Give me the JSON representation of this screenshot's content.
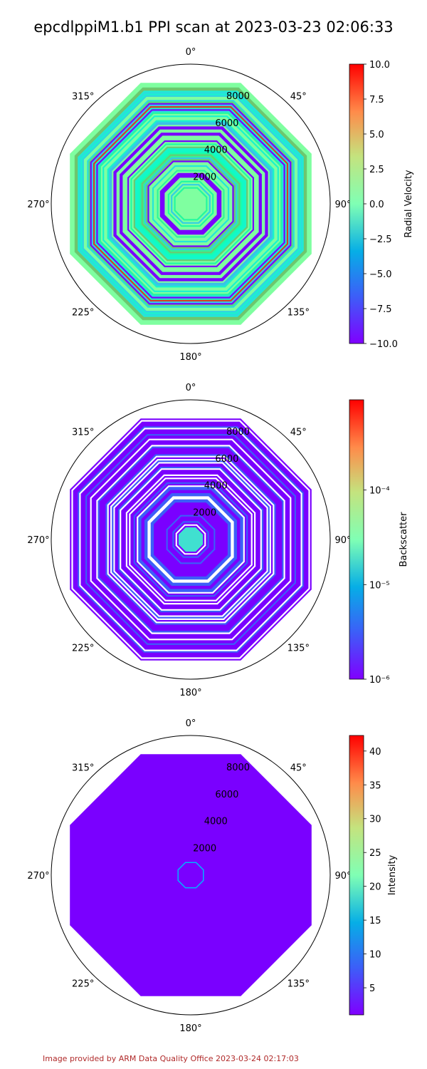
{
  "title": "epcdlppiM1.b1 PPI scan at 2023-03-23 02:06:33",
  "footer": "Image provided by ARM Data Quality Office 2023-03-24 02:17:03",
  "chart_data": [
    {
      "type": "polar",
      "angle_ticks": [
        "0°",
        "45°",
        "90°",
        "135°",
        "180°",
        "225°",
        "270°",
        "315°"
      ],
      "radial_ticks": [
        2000,
        4000,
        6000,
        8000
      ],
      "rlim": [
        0,
        9600
      ],
      "colorbar": {
        "label": "Radial Velocity",
        "scale": "linear",
        "range": [
          -10,
          10
        ],
        "ticks": [
          "10.0",
          "7.5",
          "5.0",
          "2.5",
          "0.0",
          "−2.5",
          "−5.0",
          "−7.5",
          "−10.0"
        ],
        "colormap": "rainbow"
      },
      "pattern": "varied stripes",
      "dominant_color": "#7fffa0"
    },
    {
      "type": "polar",
      "angle_ticks": [
        "0°",
        "45°",
        "90°",
        "135°",
        "180°",
        "225°",
        "270°",
        "315°"
      ],
      "radial_ticks": [
        2000,
        4000,
        6000,
        8000
      ],
      "rlim": [
        0,
        9600
      ],
      "colorbar": {
        "label": "Backscatter",
        "scale": "log",
        "range": [
          1e-06,
          0.0009
        ],
        "ticks": [
          "10⁻⁴",
          "10⁻⁵",
          "10⁻⁶"
        ],
        "colormap": "rainbow"
      },
      "pattern": "mostly low with gaps",
      "dominant_color": "#7a00ff"
    },
    {
      "type": "polar",
      "angle_ticks": [
        "0°",
        "45°",
        "90°",
        "135°",
        "180°",
        "225°",
        "270°",
        "315°"
      ],
      "radial_ticks": [
        2000,
        4000,
        6000,
        8000
      ],
      "rlim": [
        0,
        9600
      ],
      "colorbar": {
        "label": "Intensity",
        "scale": "linear",
        "range": [
          1,
          42.3
        ],
        "ticks": [
          "40",
          "35",
          "30",
          "25",
          "20",
          "15",
          "10",
          "5"
        ],
        "colormap": "rainbow"
      },
      "pattern": "uniform low",
      "dominant_color": "#7a00ff"
    }
  ]
}
